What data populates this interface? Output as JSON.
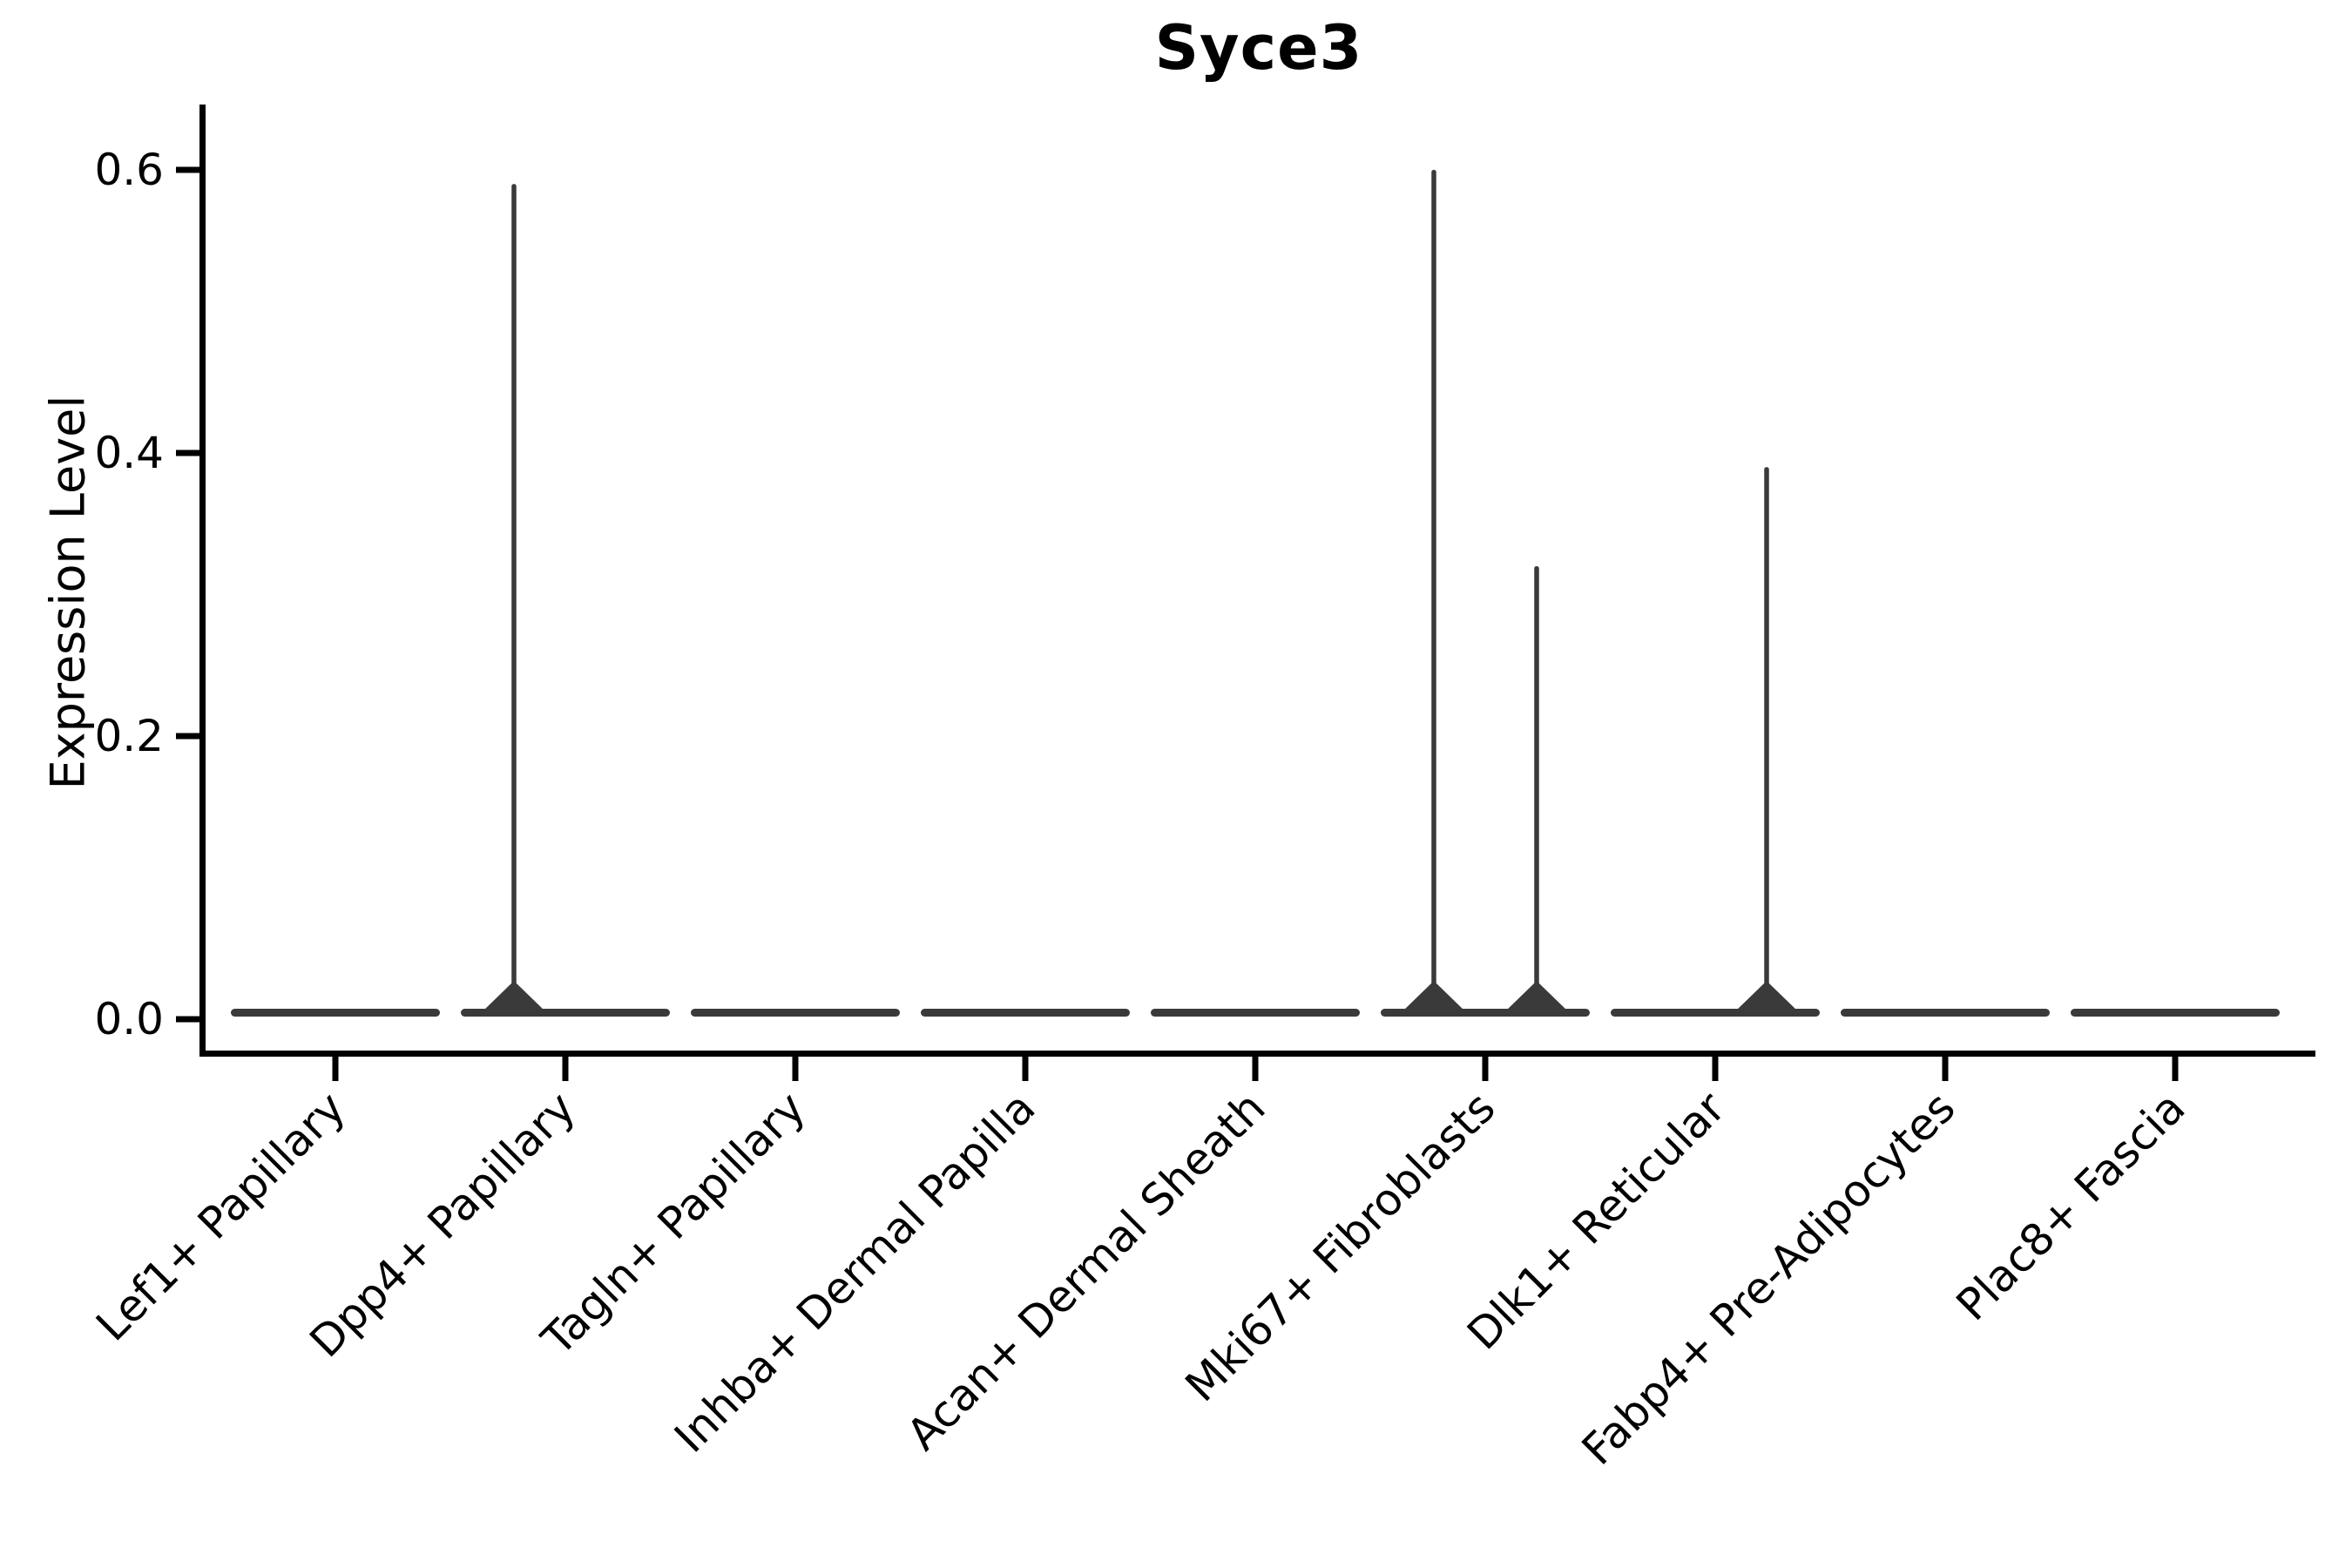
{
  "figure": {
    "title": "Syce3",
    "background": "#ffffff"
  },
  "chart_data": {
    "type": "violin",
    "title": "Syce3",
    "xlabel": "",
    "ylabel": "Expression Level",
    "ylim": [
      0,
      0.64
    ],
    "yticks": [
      0.0,
      0.2,
      0.4,
      0.6
    ],
    "ytick_labels": [
      "0.0",
      "0.2",
      "0.4",
      "0.6"
    ],
    "grid": false,
    "legend": "none",
    "categories": [
      "Lef1+ Papillary",
      "Dpp4+ Papillary",
      "Tagln+ Papillary",
      "Inhba+ Dermal Papilla",
      "Acan+ Dermal Sheath",
      "Mki67+ Fibroblasts",
      "Dlk1+ Reticular",
      "Fabp4+ Pre-Adipocytes",
      "Plac8+ Fascia"
    ],
    "violins": [
      {
        "category": "Lef1+ Papillary",
        "baseline_value": 0,
        "spikes": []
      },
      {
        "category": "Dpp4+ Papillary",
        "baseline_value": 0,
        "spikes": [
          {
            "value": 0.59,
            "side": "left"
          }
        ]
      },
      {
        "category": "Tagln+ Papillary",
        "baseline_value": 0,
        "spikes": []
      },
      {
        "category": "Inhba+ Dermal Papilla",
        "baseline_value": 0,
        "spikes": []
      },
      {
        "category": "Acan+ Dermal Sheath",
        "baseline_value": 0,
        "spikes": []
      },
      {
        "category": "Mki67+ Fibroblasts",
        "baseline_value": 0,
        "spikes": [
          {
            "value": 0.6,
            "side": "left"
          },
          {
            "value": 0.32,
            "side": "right"
          }
        ]
      },
      {
        "category": "Dlk1+ Reticular",
        "baseline_value": 0,
        "spikes": [
          {
            "value": 0.39,
            "side": "right"
          }
        ]
      },
      {
        "category": "Fabp4+ Pre-Adipocytes",
        "baseline_value": 0,
        "spikes": []
      },
      {
        "category": "Plac8+ Fascia",
        "baseline_value": 0,
        "spikes": []
      }
    ],
    "colors": {
      "violin_fill": "#3a3a3a",
      "axis": "#000000",
      "text": "#000000"
    }
  }
}
